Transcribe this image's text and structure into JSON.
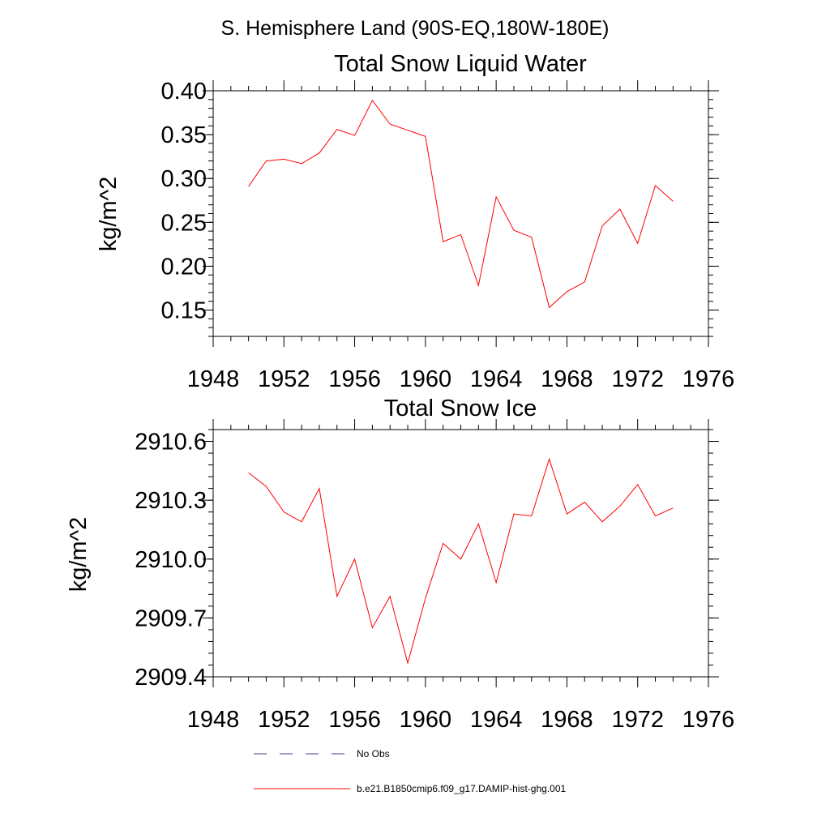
{
  "figure_title": "S. Hemisphere Land (90S-EQ,180W-180E)",
  "chart_data": [
    {
      "type": "line",
      "title": "Total Snow Liquid Water",
      "xlabel": "",
      "ylabel": "kg/m^2",
      "xlim": [
        1948,
        1976
      ],
      "ylim": [
        0.12,
        0.4
      ],
      "xticks": [
        1948,
        1952,
        1956,
        1960,
        1964,
        1968,
        1972,
        1976
      ],
      "xtick_labels": [
        "1948",
        "1952",
        "1956",
        "1960",
        "1964",
        "1968",
        "1972",
        "1976"
      ],
      "yticks": [
        0.15,
        0.2,
        0.25,
        0.3,
        0.35,
        0.4
      ],
      "ytick_labels": [
        "0.15",
        "0.20",
        "0.25",
        "0.30",
        "0.35",
        "0.40"
      ],
      "grid": false,
      "x": [
        1950,
        1951,
        1952,
        1953,
        1954,
        1955,
        1956,
        1957,
        1958,
        1959,
        1960,
        1961,
        1962,
        1963,
        1964,
        1965,
        1966,
        1967,
        1968,
        1969,
        1970,
        1971,
        1972,
        1973,
        1974
      ],
      "series": [
        {
          "name": "b.e21.B1850cmip6.f09_g17.DAMIP-hist-ghg.001",
          "color": "#ff0000",
          "values": [
            0.291,
            0.32,
            0.322,
            0.317,
            0.329,
            0.356,
            0.349,
            0.389,
            0.362,
            0.355,
            0.348,
            0.228,
            0.236,
            0.178,
            0.279,
            0.241,
            0.233,
            0.153,
            0.171,
            0.182,
            0.246,
            0.265,
            0.226,
            0.292,
            0.274
          ]
        }
      ]
    },
    {
      "type": "line",
      "title": "Total Snow Ice",
      "xlabel": "",
      "ylabel": "kg/m^2",
      "xlim": [
        1948,
        1976
      ],
      "ylim": [
        2909.4,
        2910.66
      ],
      "xticks": [
        1948,
        1952,
        1956,
        1960,
        1964,
        1968,
        1972,
        1976
      ],
      "xtick_labels": [
        "1948",
        "1952",
        "1956",
        "1960",
        "1964",
        "1968",
        "1972",
        "1976"
      ],
      "yticks": [
        2909.4,
        2909.7,
        2910.0,
        2910.3,
        2910.6
      ],
      "ytick_labels": [
        "2909.4",
        "2909.7",
        "2910.0",
        "2910.3",
        "2910.6"
      ],
      "grid": false,
      "x": [
        1950,
        1951,
        1952,
        1953,
        1954,
        1955,
        1956,
        1957,
        1958,
        1959,
        1960,
        1961,
        1962,
        1963,
        1964,
        1965,
        1966,
        1967,
        1968,
        1969,
        1970,
        1971,
        1972,
        1973,
        1974
      ],
      "series": [
        {
          "name": "b.e21.B1850cmip6.f09_g17.DAMIP-hist-ghg.001",
          "color": "#ff0000",
          "values": [
            2910.44,
            2910.37,
            2910.24,
            2910.19,
            2910.36,
            2909.81,
            2910.0,
            2909.65,
            2909.81,
            2909.47,
            2909.8,
            2910.08,
            2910.0,
            2910.18,
            2909.88,
            2910.23,
            2910.22,
            2910.51,
            2910.23,
            2910.29,
            2910.19,
            2910.27,
            2910.38,
            2910.22,
            2910.26
          ]
        }
      ]
    }
  ],
  "legend": {
    "placement": "bottom",
    "entries": [
      {
        "label": "No Obs",
        "color": "#3c3c8c",
        "style": "dashed"
      },
      {
        "label": "b.e21.B1850cmip6.f09_g17.DAMIP-hist-ghg.001",
        "color": "#ff0000",
        "style": "solid"
      }
    ]
  }
}
